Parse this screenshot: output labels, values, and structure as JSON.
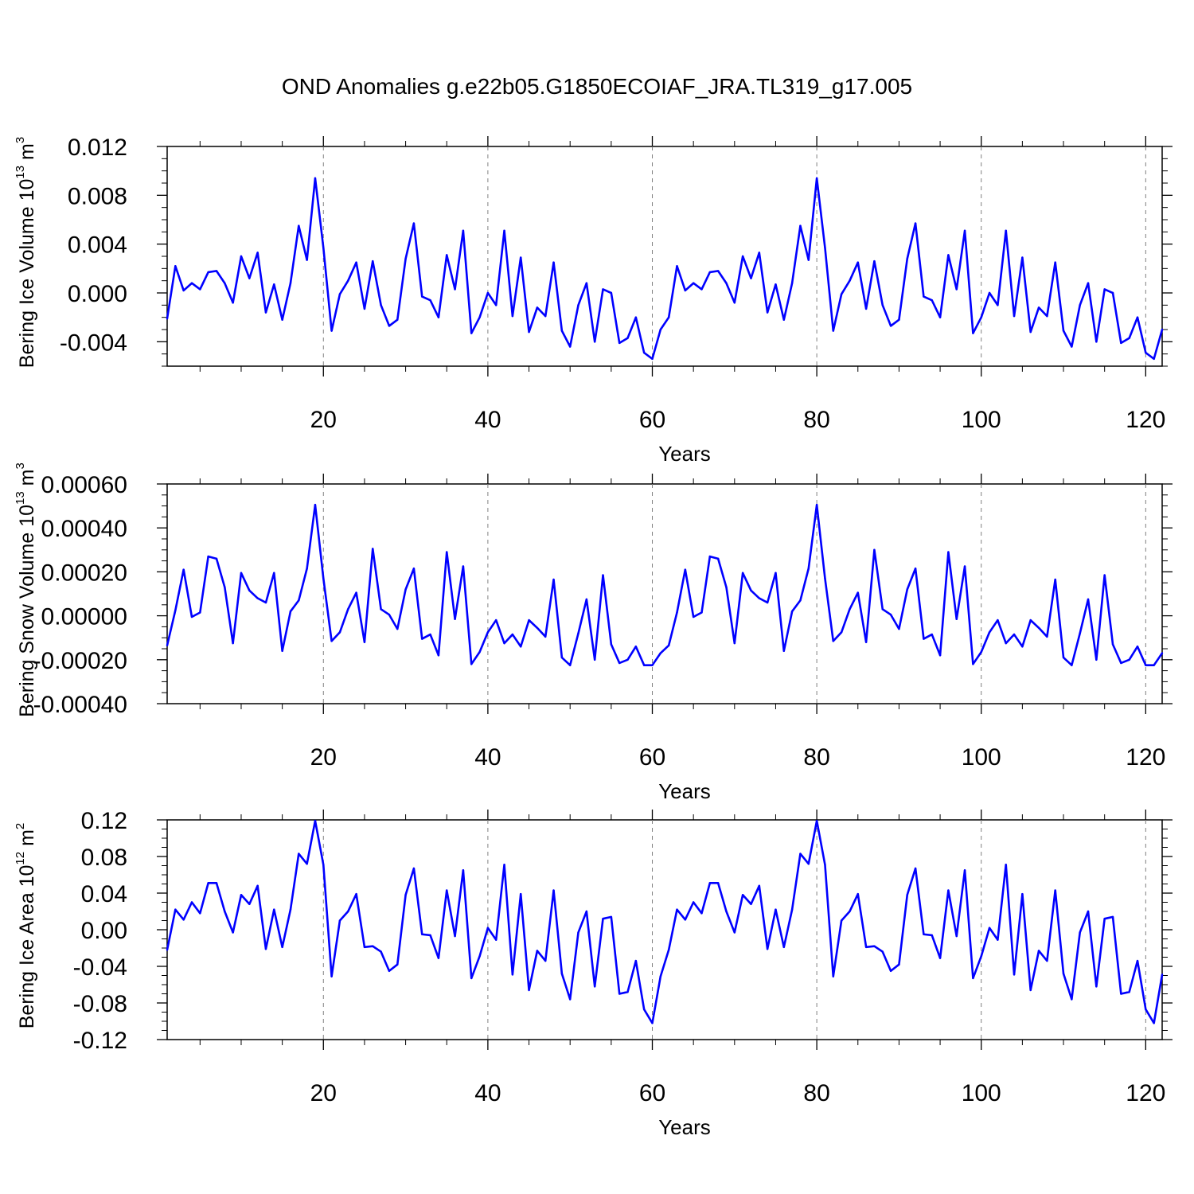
{
  "title": "OND Anomalies g.e22b05.G1850ECOIAF_JRA.TL319_g17.005",
  "colors": {
    "line": "#0000ff",
    "axis": "#000000",
    "grid": "#808080"
  },
  "chart_data": [
    {
      "type": "line",
      "ylabel": "Bering Ice Volume 10",
      "ylabel_sup": "13",
      "ylabel_unit": " m",
      "ylabel_unit_sup": "3",
      "xlabel": "Years",
      "xlim": [
        1,
        122
      ],
      "ylim": [
        -0.006,
        0.012
      ],
      "xticks": [
        20,
        40,
        60,
        80,
        100,
        120
      ],
      "xtick_labels": [
        "20",
        "40",
        "60",
        "80",
        "100",
        "120"
      ],
      "yticks": [
        -0.004,
        0.0,
        0.004,
        0.008,
        0.012
      ],
      "ytick_labels": [
        "-0.004",
        "0.000",
        "0.004",
        "0.008",
        "0.012"
      ],
      "series": [
        {
          "name": "Bering Ice Volume",
          "x_start": 1,
          "values": [
            -0.0021,
            0.0022,
            0.0002,
            0.0008,
            0.0003,
            0.0017,
            0.0018,
            0.0008,
            -0.0008,
            0.003,
            0.0012,
            0.0033,
            -0.0016,
            0.0007,
            -0.0022,
            0.0008,
            0.0055,
            0.0027,
            0.0094,
            0.0037,
            -0.0031,
            -0.0001,
            0.001,
            0.0025,
            -0.0013,
            0.0026,
            -0.001,
            -0.0027,
            -0.0022,
            0.0028,
            0.0057,
            -0.0003,
            -0.0006,
            -0.002,
            0.0031,
            0.0003,
            0.0051,
            -0.0033,
            -0.002,
            0.0,
            -0.001,
            0.0051,
            -0.0019,
            0.0029,
            -0.0032,
            -0.0012,
            -0.0019,
            0.0025,
            -0.0031,
            -0.0044,
            -0.001,
            0.0008,
            -0.004,
            0.0003,
            0.0,
            -0.0041,
            -0.0037,
            -0.002,
            -0.0049,
            -0.0054,
            -0.003,
            -0.002,
            0.0022,
            0.0002,
            0.0008,
            0.0003,
            0.0017,
            0.0018,
            0.0008,
            -0.0008,
            0.003,
            0.0012,
            0.0033,
            -0.0016,
            0.0007,
            -0.0022,
            0.0008,
            0.0055,
            0.0027,
            0.0094,
            0.0037,
            -0.0031,
            -0.0001,
            0.001,
            0.0025,
            -0.0013,
            0.0026,
            -0.001,
            -0.0027,
            -0.0022,
            0.0028,
            0.0057,
            -0.0003,
            -0.0006,
            -0.002,
            0.0031,
            0.0003,
            0.0051,
            -0.0033,
            -0.002,
            0.0,
            -0.001,
            0.0051,
            -0.0019,
            0.0029,
            -0.0032,
            -0.0012,
            -0.0019,
            0.0025,
            -0.0031,
            -0.0044,
            -0.001,
            0.0008,
            -0.004,
            0.0003,
            0.0,
            -0.0041,
            -0.0037,
            -0.002,
            -0.0049,
            -0.0054,
            -0.003
          ]
        }
      ]
    },
    {
      "type": "line",
      "ylabel": "Bering Snow Volume 10",
      "ylabel_sup": "13",
      "ylabel_unit": " m",
      "ylabel_unit_sup": "3",
      "xlabel": "Years",
      "xlim": [
        1,
        122
      ],
      "ylim": [
        -0.0004,
        0.0006
      ],
      "xticks": [
        20,
        40,
        60,
        80,
        100,
        120
      ],
      "xtick_labels": [
        "20",
        "40",
        "60",
        "80",
        "100",
        "120"
      ],
      "yticks": [
        -0.0004,
        -0.0002,
        0.0,
        0.0002,
        0.0004,
        0.0006
      ],
      "ytick_labels": [
        "-0.00040",
        "-0.00020",
        "0.00000",
        "0.00020",
        "0.00040",
        "0.00060"
      ],
      "series": [
        {
          "name": "Bering Snow Volume",
          "x_start": 1,
          "values": [
            -0.000135,
            2.5e-05,
            0.00021,
            -5e-06,
            1.5e-05,
            0.00027,
            0.00026,
            0.00013,
            -0.000125,
            0.000195,
            0.000115,
            8e-05,
            6e-05,
            0.000195,
            -0.00016,
            2e-05,
            7e-05,
            0.000215,
            0.000505,
            0.00017,
            -0.000115,
            -7.5e-05,
            3e-05,
            0.000105,
            -0.00012,
            0.000305,
            3e-05,
            5e-06,
            -6e-05,
            0.00012,
            0.000215,
            -0.000105,
            -8.5e-05,
            -0.00018,
            0.00029,
            -1.5e-05,
            0.000225,
            -0.00022,
            -0.000165,
            -7.5e-05,
            -2e-05,
            -0.000125,
            -8.5e-05,
            -0.00014,
            -2e-05,
            -5.5e-05,
            -9.5e-05,
            0.000165,
            -0.00019,
            -0.000225,
            -8e-05,
            7.5e-05,
            -0.0002,
            0.000185,
            -0.00013,
            -0.000215,
            -0.0002,
            -0.00014,
            -0.000225,
            -0.000225,
            -0.00017,
            -0.000135,
            1.5e-05,
            0.00021,
            -5e-06,
            1.5e-05,
            0.00027,
            0.00026,
            0.00013,
            -0.000125,
            0.000195,
            0.000115,
            8e-05,
            6e-05,
            0.000195,
            -0.00016,
            2e-05,
            7e-05,
            0.000215,
            0.000505,
            0.00017,
            -0.000115,
            -7.5e-05,
            3e-05,
            0.000105,
            -0.00012,
            0.0003,
            3e-05,
            5e-06,
            -6e-05,
            0.00012,
            0.000215,
            -0.000105,
            -8.5e-05,
            -0.00018,
            0.00029,
            -1.5e-05,
            0.000225,
            -0.00022,
            -0.000165,
            -7.5e-05,
            -2e-05,
            -0.000125,
            -8.5e-05,
            -0.00014,
            -2e-05,
            -5.5e-05,
            -9.5e-05,
            0.000165,
            -0.00019,
            -0.000225,
            -8e-05,
            7.5e-05,
            -0.0002,
            0.000185,
            -0.00013,
            -0.000215,
            -0.0002,
            -0.00014,
            -0.000225,
            -0.000225,
            -0.00017
          ]
        }
      ]
    },
    {
      "type": "line",
      "ylabel": "Bering Ice Area 10",
      "ylabel_sup": "12",
      "ylabel_unit": " m",
      "ylabel_unit_sup": "2",
      "xlabel": "Years",
      "xlim": [
        1,
        122
      ],
      "ylim": [
        -0.12,
        0.12
      ],
      "xticks": [
        20,
        40,
        60,
        80,
        100,
        120
      ],
      "xtick_labels": [
        "20",
        "40",
        "60",
        "80",
        "100",
        "120"
      ],
      "yticks": [
        -0.12,
        -0.08,
        -0.04,
        0.0,
        0.04,
        0.08,
        0.12
      ],
      "ytick_labels": [
        "-0.12",
        "-0.08",
        "-0.04",
        "0.00",
        "0.04",
        "0.08",
        "0.12"
      ],
      "series": [
        {
          "name": "Bering Ice Area",
          "x_start": 1,
          "values": [
            -0.022,
            0.022,
            0.011,
            0.03,
            0.018,
            0.051,
            0.051,
            0.02,
            -0.003,
            0.038,
            0.028,
            0.048,
            -0.021,
            0.022,
            -0.019,
            0.022,
            0.083,
            0.072,
            0.119,
            0.071,
            -0.051,
            0.01,
            0.02,
            0.039,
            -0.019,
            -0.018,
            -0.024,
            -0.045,
            -0.038,
            0.038,
            0.067,
            -0.005,
            -0.006,
            -0.031,
            0.043,
            -0.007,
            0.065,
            -0.053,
            -0.029,
            0.002,
            -0.011,
            0.071,
            -0.049,
            0.039,
            -0.066,
            -0.023,
            -0.034,
            0.043,
            -0.048,
            -0.076,
            -0.003,
            0.02,
            -0.062,
            0.012,
            0.014,
            -0.07,
            -0.068,
            -0.034,
            -0.087,
            -0.102,
            -0.051,
            -0.022,
            0.022,
            0.011,
            0.03,
            0.018,
            0.051,
            0.051,
            0.02,
            -0.003,
            0.038,
            0.028,
            0.048,
            -0.021,
            0.022,
            -0.019,
            0.022,
            0.083,
            0.072,
            0.119,
            0.071,
            -0.051,
            0.01,
            0.02,
            0.039,
            -0.019,
            -0.018,
            -0.024,
            -0.045,
            -0.038,
            0.038,
            0.067,
            -0.005,
            -0.006,
            -0.031,
            0.043,
            -0.007,
            0.065,
            -0.053,
            -0.029,
            0.002,
            -0.011,
            0.071,
            -0.049,
            0.039,
            -0.066,
            -0.023,
            -0.034,
            0.043,
            -0.048,
            -0.076,
            -0.003,
            0.02,
            -0.062,
            0.012,
            0.014,
            -0.07,
            -0.068,
            -0.034,
            -0.087,
            -0.102,
            -0.049
          ]
        }
      ]
    }
  ]
}
